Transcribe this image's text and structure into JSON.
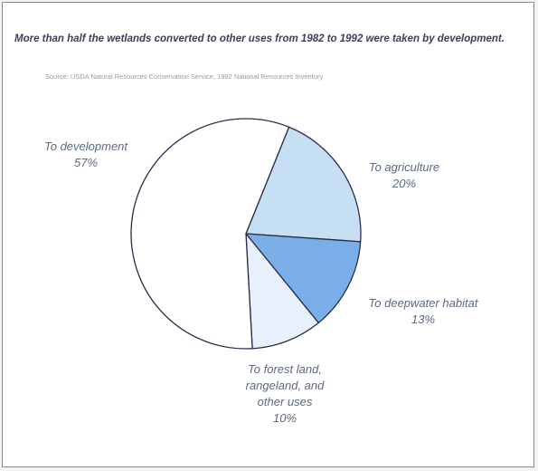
{
  "chart_data": {
    "type": "pie",
    "title": "More than half the wetlands converted to other uses from 1982 to 1992 were taken by development.",
    "source": "Source: USDA Natural Resources Conservation Service, 1992 National Resources Inventory",
    "slices": [
      {
        "label_lines": [
          "To development"
        ],
        "value_label": "57%",
        "value": 57,
        "color": "#ffffff"
      },
      {
        "label_lines": [
          "To agriculture"
        ],
        "value_label": "20%",
        "value": 20,
        "color": "#c7dff3"
      },
      {
        "label_lines": [
          "To deepwater habitat"
        ],
        "value_label": "13%",
        "value": 13,
        "color": "#7aaee6"
      },
      {
        "label_lines": [
          "To forest land,",
          "rangeland, and",
          "other uses"
        ],
        "value_label": "10%",
        "value": 10,
        "color": "#e8f1fb"
      }
    ],
    "outline_color": "#2b2b4a"
  }
}
